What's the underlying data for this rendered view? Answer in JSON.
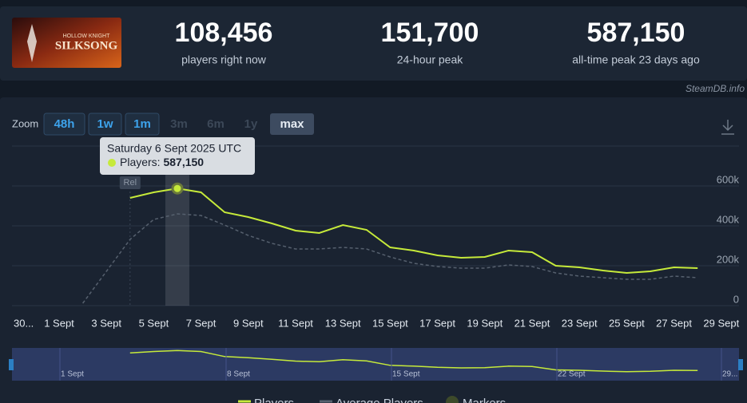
{
  "header": {
    "image_title": "SILKSONG",
    "image_subtitle": "HOLLOW KNIGHT",
    "stats": [
      {
        "value": "108,456",
        "label": "players right now"
      },
      {
        "value": "151,700",
        "label": "24-hour peak"
      },
      {
        "value": "587,150",
        "label": "all-time peak 23 days ago"
      }
    ]
  },
  "watermark": "SteamDB.info",
  "zoom": {
    "label": "Zoom",
    "buttons": [
      "48h",
      "1w",
      "1m",
      "3m",
      "6m",
      "1y",
      "max"
    ]
  },
  "chart_data": {
    "type": "line",
    "categories": [
      "30...",
      null,
      "1 Sept",
      null,
      "3 Sept",
      null,
      "5 Sept",
      null,
      "7 Sept",
      null,
      "9 Sept",
      null,
      "11 Sept",
      null,
      "13 Sept",
      null,
      "15 Sept",
      null,
      "17 Sept",
      null,
      "19 Sept",
      null,
      "21 Sept",
      null,
      "23 Sept",
      null,
      "25 Sept",
      null,
      "27 Sept",
      null,
      "29 Sept"
    ],
    "series": [
      {
        "name": "Players",
        "color": "#c6ea3a",
        "values": [
          null,
          null,
          null,
          null,
          null,
          540000,
          568000,
          587150,
          568000,
          468000,
          444000,
          412000,
          376000,
          364000,
          404000,
          380000,
          292000,
          276000,
          252000,
          240000,
          244000,
          276000,
          268000,
          200000,
          192000,
          176000,
          164000,
          172000,
          192000,
          188000,
          null
        ]
      },
      {
        "name": "Average Players",
        "color": "#56606e",
        "values": [
          null,
          null,
          null,
          12000,
          172000,
          332000,
          432000,
          460000,
          452000,
          404000,
          352000,
          312000,
          284000,
          284000,
          292000,
          284000,
          244000,
          212000,
          196000,
          188000,
          188000,
          204000,
          196000,
          164000,
          148000,
          140000,
          132000,
          132000,
          148000,
          140000,
          null
        ]
      }
    ],
    "ylim": [
      0,
      800000
    ],
    "yticks": [
      {
        "value": 0,
        "label": "0"
      },
      {
        "value": 200000,
        "label": "200k"
      },
      {
        "value": 400000,
        "label": "400k"
      },
      {
        "value": 600000,
        "label": "600k"
      }
    ],
    "grid": true,
    "tooltip": {
      "title": "Saturday 6 Sept 2025 UTC",
      "label": "Players:",
      "value": "587,150"
    },
    "marker_label": "Rel",
    "markers_legend": "Markers",
    "navigator_labels": [
      "1 Sept",
      "8 Sept",
      "15 Sept",
      "22 Sept",
      "29..."
    ]
  }
}
